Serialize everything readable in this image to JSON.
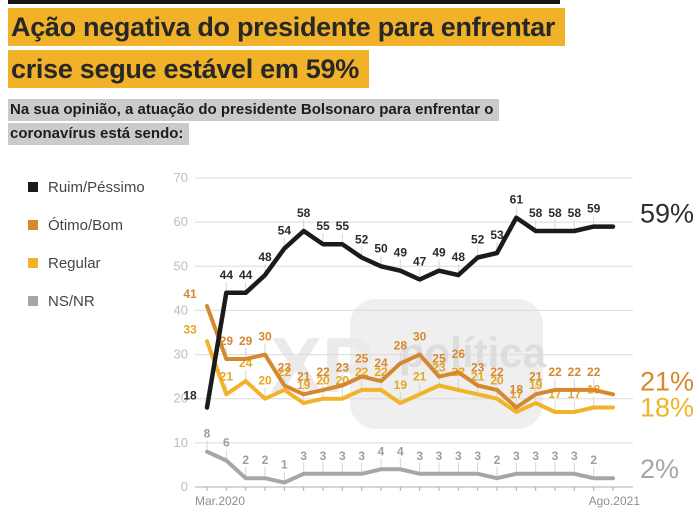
{
  "title": {
    "line1": "Ação negativa do presidente para enfrentar",
    "line2": "crise segue estável em 59%",
    "highlight_color": "#F1B229"
  },
  "subtitle": {
    "line1": "Na sua opinião, a atuação do presidente Bolsonaro para enfrentar o",
    "line2": "coronavírus está sendo:",
    "highlight_color": "#CBCBCB"
  },
  "watermark": {
    "xp": "XP",
    "politica": "política"
  },
  "chart_data": {
    "type": "line",
    "title": "",
    "xlabel": "",
    "ylabel": "",
    "ylim": [
      0,
      70
    ],
    "yticks": [
      0,
      10,
      20,
      30,
      40,
      50,
      60,
      70
    ],
    "grid": true,
    "legend_position": "left",
    "x_axis": {
      "start_label": "Mar.2020",
      "end_label": "Ago.2021",
      "num_points": 22
    },
    "series": [
      {
        "name": "Ruim/Péssimo",
        "color": "#1B1B1B",
        "label_color": "#2B2B2B",
        "end_label": "59%",
        "values": [
          18,
          44,
          44,
          48,
          54,
          58,
          55,
          55,
          52,
          50,
          49,
          47,
          49,
          48,
          52,
          53,
          61,
          58,
          58,
          58,
          59,
          59
        ]
      },
      {
        "name": "Ótimo/Bom",
        "color": "#D5882F",
        "label_color": "#D5882F",
        "end_label": "21%",
        "values": [
          41,
          29,
          29,
          30,
          23,
          21,
          22,
          23,
          25,
          24,
          28,
          30,
          25,
          26,
          23,
          22,
          18,
          21,
          22,
          22,
          22,
          21
        ]
      },
      {
        "name": "Regular",
        "color": "#F2B32A",
        "label_color": "#E7A51F",
        "end_label": "18%",
        "values": [
          33,
          21,
          24,
          20,
          22,
          19,
          20,
          20,
          22,
          22,
          19,
          21,
          23,
          22,
          21,
          20,
          17,
          19,
          17,
          17,
          18,
          18
        ]
      },
      {
        "name": "NS/NR",
        "color": "#A6A6A6",
        "label_color": "#9E9E9E",
        "end_label": "2%",
        "values": [
          8,
          6,
          2,
          2,
          1,
          3,
          3,
          3,
          3,
          4,
          4,
          3,
          3,
          3,
          3,
          2,
          3,
          3,
          3,
          3,
          2,
          2
        ]
      }
    ]
  }
}
